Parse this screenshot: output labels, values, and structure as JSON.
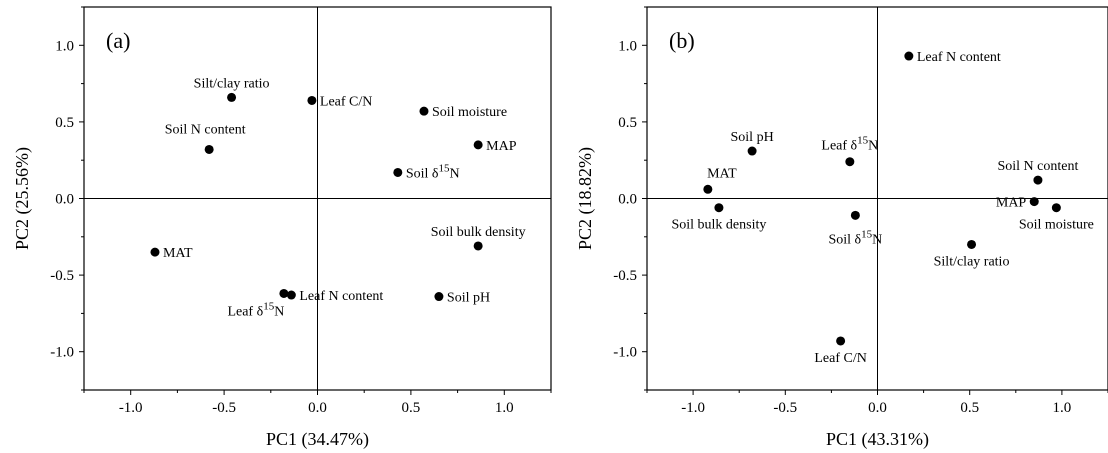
{
  "chart_data": [
    {
      "type": "scatter",
      "panel_label": "(a)",
      "xlabel": "PC1  (34.47%)",
      "ylabel": "PC2  (25.56%)",
      "xlim": [
        -1.25,
        1.25
      ],
      "ylim": [
        -1.25,
        1.25
      ],
      "xticks": [
        -1.0,
        -0.5,
        0.0,
        0.5,
        1.0
      ],
      "yticks": [
        -1.0,
        -0.5,
        0.0,
        0.5,
        1.0
      ],
      "xtick_labels": [
        "-1.0",
        "-0.5",
        "0.0",
        "0.5",
        "1.0"
      ],
      "ytick_labels": [
        "-1.0",
        "-0.5",
        "0.0",
        "0.5",
        "1.0"
      ],
      "grid": false,
      "reference_lines": {
        "x": 0,
        "y": 0
      },
      "points": [
        {
          "label": "Silt/clay ratio",
          "x": -0.46,
          "y": 0.66,
          "label_pos": "above"
        },
        {
          "label": "Leaf C/N",
          "x": -0.03,
          "y": 0.64,
          "label_pos": "right"
        },
        {
          "label": "Soil moisture",
          "x": 0.57,
          "y": 0.57,
          "label_pos": "right"
        },
        {
          "label": "Soil N content",
          "x": -0.58,
          "y": 0.32,
          "label_pos": "above-left"
        },
        {
          "label": "MAP",
          "x": 0.86,
          "y": 0.35,
          "label_pos": "right"
        },
        {
          "label": "Soil δ15N",
          "x": 0.43,
          "y": 0.17,
          "label_pos": "right"
        },
        {
          "label": "Soil bulk density",
          "x": 0.86,
          "y": -0.31,
          "label_pos": "above"
        },
        {
          "label": "MAT",
          "x": -0.87,
          "y": -0.35,
          "label_pos": "right"
        },
        {
          "label": "Leaf δ15N",
          "x": -0.18,
          "y": -0.62,
          "label_pos": "below-left"
        },
        {
          "label": "Leaf N content",
          "x": -0.14,
          "y": -0.63,
          "label_pos": "right"
        },
        {
          "label": "Soil pH",
          "x": 0.65,
          "y": -0.64,
          "label_pos": "right"
        }
      ]
    },
    {
      "type": "scatter",
      "panel_label": "(b)",
      "xlabel": "PC1  (43.31%)",
      "ylabel": "PC2  (18.82%)",
      "xlim": [
        -1.25,
        1.25
      ],
      "ylim": [
        -1.25,
        1.25
      ],
      "xticks": [
        -1.0,
        -0.5,
        0.0,
        0.5,
        1.0
      ],
      "yticks": [
        -1.0,
        -0.5,
        0.0,
        0.5,
        1.0
      ],
      "xtick_labels": [
        "-1.0",
        "-0.5",
        "0.0",
        "0.5",
        "1.0"
      ],
      "ytick_labels": [
        "-1.0",
        "-0.5",
        "0.0",
        "0.5",
        "1.0"
      ],
      "grid": false,
      "reference_lines": {
        "x": 0,
        "y": 0
      },
      "points": [
        {
          "label": "Leaf N content",
          "x": 0.17,
          "y": 0.93,
          "label_pos": "right"
        },
        {
          "label": "Soil pH",
          "x": -0.68,
          "y": 0.31,
          "label_pos": "above"
        },
        {
          "label": "Leaf δ15N",
          "x": -0.15,
          "y": 0.24,
          "label_pos": "above-big"
        },
        {
          "label": "MAT",
          "x": -0.92,
          "y": 0.06,
          "label_pos": "above-right"
        },
        {
          "label": "Soil bulk density",
          "x": -0.86,
          "y": -0.06,
          "label_pos": "below"
        },
        {
          "label": "Soil δ15N",
          "x": -0.12,
          "y": -0.11,
          "label_pos": "below-big"
        },
        {
          "label": "Soil N content",
          "x": 0.87,
          "y": 0.12,
          "label_pos": "above"
        },
        {
          "label": "MAP",
          "x": 0.85,
          "y": -0.02,
          "label_pos": "left"
        },
        {
          "label": "Soil moisture",
          "x": 0.97,
          "y": -0.06,
          "label_pos": "below"
        },
        {
          "label": "Silt/clay ratio",
          "x": 0.51,
          "y": -0.3,
          "label_pos": "below"
        },
        {
          "label": "Leaf C/N",
          "x": -0.2,
          "y": -0.93,
          "label_pos": "below"
        }
      ]
    }
  ]
}
